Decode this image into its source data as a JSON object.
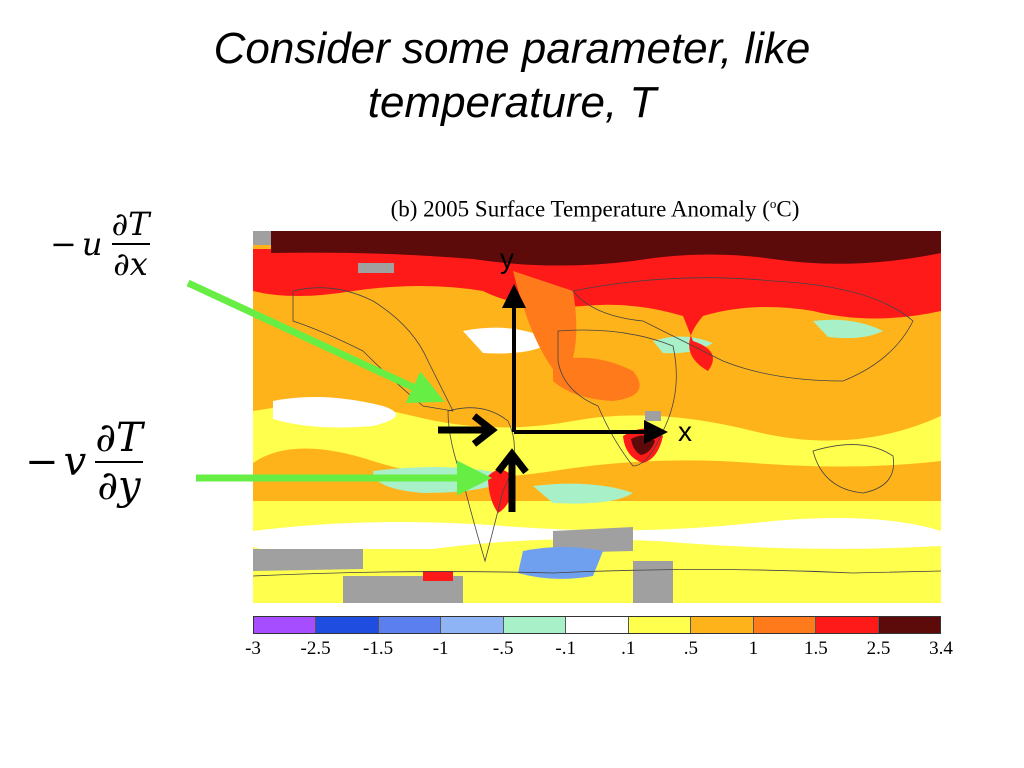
{
  "slide": {
    "title_line1": "Consider some parameter, like",
    "title_line2": "temperature, T"
  },
  "map": {
    "title": "(b) 2005 Surface Temperature Anomaly (",
    "title_unit": "o",
    "title_end": "C)"
  },
  "colorbar": {
    "ticks": [
      "-3",
      "-2.5",
      "-1.5",
      "-1",
      "-.5",
      "-.1",
      ".1",
      ".5",
      "1",
      "1.5",
      "2.5",
      "3.4"
    ],
    "colors": [
      "#a64dff",
      "#1f4de0",
      "#5c7ff0",
      "#8fb4f5",
      "#a8f0c8",
      "#ffffff",
      "#ffff4d",
      "#ffb31a",
      "#ff7a1a",
      "#ff1a1a",
      "#5c0a0a"
    ]
  },
  "equations": {
    "u_term": {
      "sign": "−",
      "var": "u",
      "num": "∂T",
      "den": "∂x"
    },
    "v_term": {
      "sign": "−",
      "var": "v",
      "num": "∂T",
      "den": "∂y"
    }
  },
  "axes": {
    "x_label": "x",
    "y_label": "y"
  },
  "colors": {
    "arrow_green": "#66ee44",
    "arrow_black": "#000000"
  }
}
